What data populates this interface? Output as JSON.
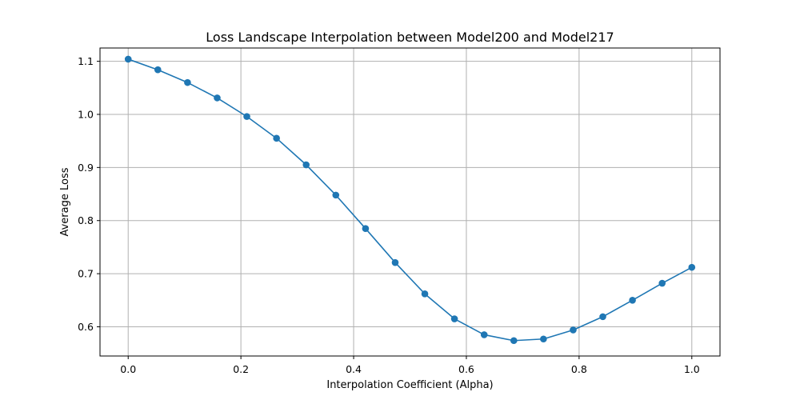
{
  "chart_data": {
    "type": "line",
    "title": "Loss Landscape Interpolation between Model200 and Model217",
    "xlabel": "Interpolation Coefficient (Alpha)",
    "ylabel": "Average Loss",
    "xlim": [
      -0.05,
      1.05
    ],
    "ylim": [
      0.545,
      1.125
    ],
    "xticks": [
      0.0,
      0.2,
      0.4,
      0.6,
      0.8,
      1.0
    ],
    "xtick_labels": [
      "0.0",
      "0.2",
      "0.4",
      "0.6",
      "0.8",
      "1.0"
    ],
    "yticks": [
      0.6,
      0.7,
      0.8,
      0.9,
      1.0,
      1.1
    ],
    "ytick_labels": [
      "0.6",
      "0.7",
      "0.8",
      "0.9",
      "1.0",
      "1.1"
    ],
    "grid": true,
    "series": [
      {
        "color": "#1f77b4",
        "marker": "circle",
        "x": [
          0.0,
          0.0526,
          0.1053,
          0.1579,
          0.2105,
          0.2632,
          0.3158,
          0.3684,
          0.4211,
          0.4737,
          0.5263,
          0.5789,
          0.6316,
          0.6842,
          0.7368,
          0.7895,
          0.8421,
          0.8947,
          0.9474,
          1.0
        ],
        "y": [
          1.104,
          1.084,
          1.06,
          1.031,
          0.996,
          0.955,
          0.905,
          0.848,
          0.785,
          0.721,
          0.662,
          0.615,
          0.585,
          0.574,
          0.577,
          0.594,
          0.619,
          0.65,
          0.682,
          0.712
        ]
      }
    ]
  }
}
